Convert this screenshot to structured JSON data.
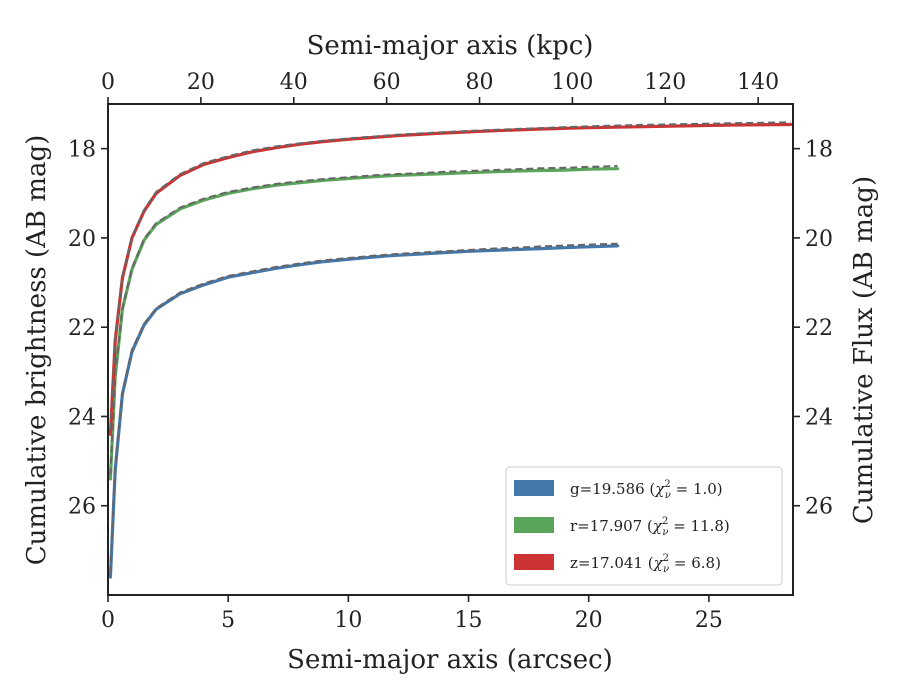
{
  "chart_data": {
    "type": "line",
    "title": "",
    "xlabel": "Semi-major axis (arcsec)",
    "ylabel": "Cumulative brightness (AB mag)",
    "x2label": "Semi-major axis (kpc)",
    "y2label": "Cumulative Flux (AB mag)",
    "xlim": [
      0,
      28.5
    ],
    "ylim": [
      28.0,
      17.0
    ],
    "x2lim": [
      0,
      147.5
    ],
    "y_inverted": true,
    "xticks": [
      0,
      5,
      10,
      15,
      20,
      25
    ],
    "yticks": [
      18,
      20,
      22,
      24,
      26
    ],
    "x2ticks": [
      0,
      20,
      40,
      60,
      80,
      100,
      120,
      140
    ],
    "xtick_labels": [
      "0",
      "5",
      "10",
      "15",
      "20",
      "25"
    ],
    "ytick_labels": [
      "18",
      "20",
      "22",
      "24",
      "26"
    ],
    "x2tick_labels": [
      "0",
      "20",
      "40",
      "60",
      "80",
      "100",
      "120",
      "140"
    ],
    "grid": false,
    "legend_position": "bottom-right",
    "legend": [
      {
        "band": "g",
        "color": "#4477aa",
        "prefix": "g=19.586 (",
        "chi": "χ",
        "sub": "ν",
        "sup": "2",
        "suffix": " = 1.0)"
      },
      {
        "band": "r",
        "color": "#5aa55a",
        "prefix": "r=17.907 (",
        "chi": "χ",
        "sub": "ν",
        "sup": "2",
        "suffix": " = 11.8)"
      },
      {
        "band": "z",
        "color": "#cc3333",
        "prefix": "z=17.041 (",
        "chi": "χ",
        "sub": "ν",
        "sup": "2",
        "suffix": " = 6.8)"
      }
    ],
    "series": [
      {
        "band": "g",
        "color": "#4477aa",
        "model_color": "#666666",
        "x": [
          0.1,
          0.3,
          0.6,
          1.0,
          1.5,
          2.0,
          3.0,
          4.0,
          5.0,
          6.0,
          7.0,
          8.0,
          9.0,
          10.0,
          11.0,
          12.0,
          13.0,
          14.0,
          15.0,
          16.0,
          17.0,
          18.0,
          19.0,
          20.0,
          21.2
        ],
        "values": [
          27.6,
          25.2,
          23.5,
          22.55,
          21.95,
          21.6,
          21.25,
          21.05,
          20.88,
          20.78,
          20.68,
          20.6,
          20.53,
          20.48,
          20.43,
          20.39,
          20.36,
          20.33,
          20.3,
          20.28,
          20.26,
          20.24,
          20.22,
          20.2,
          20.18
        ],
        "model_values": [
          27.5,
          25.1,
          23.45,
          22.5,
          21.92,
          21.58,
          21.22,
          21.02,
          20.85,
          20.75,
          20.65,
          20.57,
          20.5,
          20.45,
          20.4,
          20.36,
          20.33,
          20.3,
          20.27,
          20.24,
          20.22,
          20.19,
          20.17,
          20.15,
          20.13
        ]
      },
      {
        "band": "r",
        "color": "#5aa55a",
        "model_color": "#666666",
        "x": [
          0.1,
          0.3,
          0.6,
          1.0,
          1.5,
          2.0,
          3.0,
          4.0,
          5.0,
          6.0,
          7.0,
          8.0,
          9.0,
          10.0,
          11.0,
          12.0,
          13.0,
          14.0,
          15.0,
          16.0,
          17.0,
          18.0,
          19.0,
          20.0,
          21.2
        ],
        "values": [
          25.4,
          23.1,
          21.6,
          20.7,
          20.05,
          19.7,
          19.35,
          19.15,
          19.0,
          18.9,
          18.82,
          18.76,
          18.71,
          18.67,
          18.63,
          18.6,
          18.58,
          18.56,
          18.54,
          18.52,
          18.5,
          18.49,
          18.48,
          18.46,
          18.45
        ],
        "model_values": [
          25.3,
          23.05,
          21.57,
          20.68,
          20.02,
          19.67,
          19.32,
          19.12,
          18.97,
          18.87,
          18.79,
          18.73,
          18.68,
          18.64,
          18.6,
          18.57,
          18.55,
          18.52,
          18.5,
          18.48,
          18.46,
          18.44,
          18.43,
          18.41,
          18.39
        ]
      },
      {
        "band": "z",
        "color": "#cc3333",
        "model_color": "#666666",
        "x": [
          0.1,
          0.3,
          0.6,
          1.0,
          1.5,
          2.0,
          3.0,
          4.0,
          5.0,
          6.0,
          7.0,
          8.0,
          9.0,
          10.0,
          12.0,
          14.0,
          16.0,
          18.0,
          20.0,
          22.0,
          24.0,
          26.0,
          28.4
        ],
        "values": [
          24.4,
          22.3,
          20.9,
          20.0,
          19.4,
          19.0,
          18.6,
          18.35,
          18.2,
          18.07,
          17.98,
          17.9,
          17.84,
          17.79,
          17.71,
          17.65,
          17.6,
          17.56,
          17.53,
          17.51,
          17.49,
          17.47,
          17.46
        ],
        "model_values": [
          24.3,
          22.25,
          20.85,
          19.97,
          19.37,
          18.97,
          18.57,
          18.32,
          18.17,
          18.04,
          17.95,
          17.88,
          17.82,
          17.77,
          17.69,
          17.63,
          17.58,
          17.54,
          17.5,
          17.47,
          17.45,
          17.43,
          17.41
        ]
      }
    ]
  }
}
